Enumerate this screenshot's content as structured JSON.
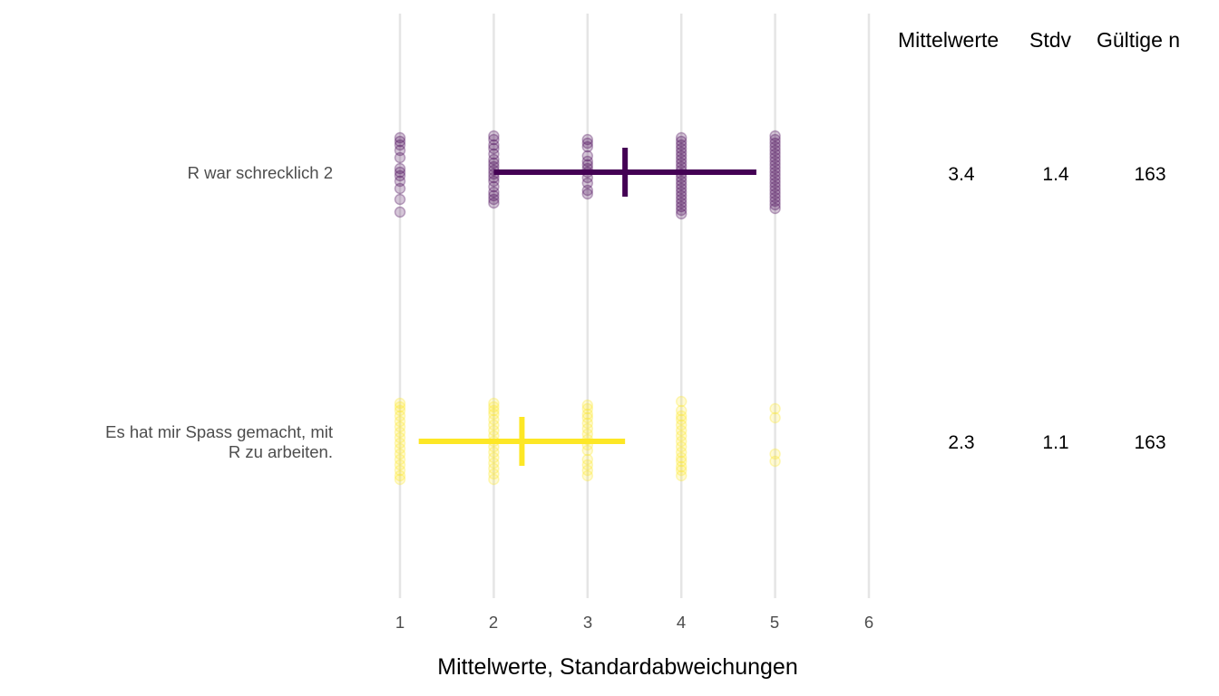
{
  "chart_data": {
    "type": "scatter",
    "title": "",
    "xlabel": "Mittelwerte, Standardabweichungen",
    "ylabel": "",
    "xlim": [
      1,
      6
    ],
    "x_ticks": [
      "1",
      "2",
      "3",
      "4",
      "5",
      "6"
    ],
    "grid": "vertical major gridlines",
    "legend": "none",
    "categories": [
      "R war schrecklich 2",
      "Es hat mir Spass gemacht, mit\nR zu arbeiten."
    ],
    "series": [
      {
        "name": "R war schrecklich 2",
        "color": "#440154",
        "mean": 3.4,
        "sd": 1.4,
        "n": 163,
        "error_bar": [
          2.0,
          4.8
        ],
        "point_values": [
          1,
          2,
          3,
          4,
          5
        ]
      },
      {
        "name": "Es hat mir Spass gemacht, mit R zu arbeiten.",
        "color": "#FDE725",
        "mean": 2.3,
        "sd": 1.1,
        "n": 163,
        "error_bar": [
          1.2,
          3.4
        ],
        "point_values": [
          1,
          2,
          3,
          4,
          5
        ]
      }
    ],
    "table": {
      "headers": [
        "Mittelwerte",
        "Stdv",
        "Gültige n"
      ],
      "rows": [
        [
          "3.4",
          "1.4",
          "163"
        ],
        [
          "2.3",
          "1.1",
          "163"
        ]
      ]
    }
  },
  "labels": {
    "row1": "R war schrecklich 2",
    "row2": "Es hat mir Spass gemacht, mit\nR zu arbeiten.",
    "xtitle": "Mittelwerte, Standardabweichungen",
    "ticks": [
      "1",
      "2",
      "3",
      "4",
      "5",
      "6"
    ],
    "col_mean": "Mittelwerte",
    "col_sd": "Stdv",
    "col_n": "Gültige n",
    "r1_mean": "3.4",
    "r1_sd": "1.4",
    "r1_n": "163",
    "r2_mean": "2.3",
    "r2_sd": "1.1",
    "r2_n": "163"
  }
}
